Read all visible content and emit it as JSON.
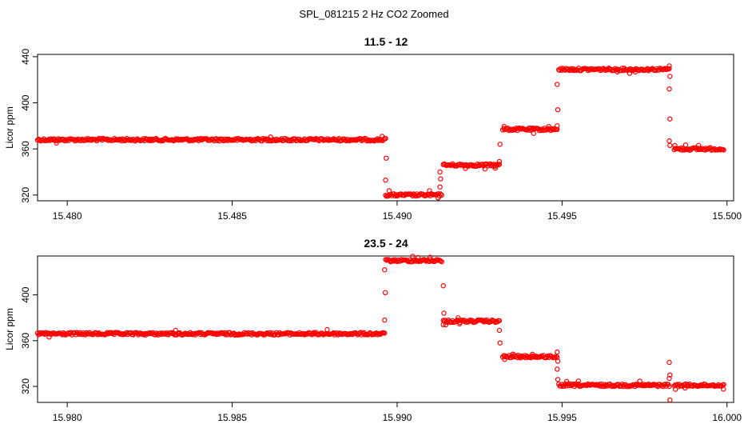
{
  "figure": {
    "title": "SPL_081215  2 Hz CO2 Zoomed"
  },
  "colors": {
    "points": "#ff0000",
    "axis": "#000000"
  },
  "chart_data": [
    {
      "type": "scatter",
      "title": "11.5 - 12",
      "xlabel": "",
      "ylabel": "Licor ppm",
      "xlim": [
        15.4791,
        15.5002
      ],
      "ylim": [
        315,
        442
      ],
      "x_ticks": [
        15.48,
        15.485,
        15.49,
        15.495,
        15.5
      ],
      "x_tick_labels": [
        "15.480",
        "15.485",
        "15.490",
        "15.495",
        "15.500"
      ],
      "y_ticks": [
        320,
        360,
        400,
        440
      ],
      "y_tick_labels": [
        "320",
        "360",
        "400",
        "440"
      ],
      "grid": false,
      "marker": "open-circle",
      "segments": [
        {
          "x": [
            15.4791,
            15.48962
          ],
          "y": 368
        },
        {
          "x": [
            15.48965,
            15.49135
          ],
          "y": 320
        },
        {
          "x": [
            15.4914,
            15.4931
          ],
          "y": 346
        },
        {
          "x": [
            15.4932,
            15.49485
          ],
          "y": 377
        },
        {
          "x": [
            15.4949,
            15.49825
          ],
          "y": 429
        },
        {
          "x": [
            15.4984,
            15.4999
          ],
          "y": 360
        }
      ],
      "transitions": [
        {
          "x": 15.48965,
          "y": [
            369,
            352,
            333
          ]
        },
        {
          "x": 15.4913,
          "y": [
            327,
            334,
            340
          ]
        },
        {
          "x": 15.4931,
          "y": [
            349,
            364
          ]
        },
        {
          "x": 15.49485,
          "y": [
            380,
            394,
            416
          ]
        },
        {
          "x": 15.49825,
          "y": [
            432,
            423,
            412,
            386,
            367,
            363
          ]
        }
      ]
    },
    {
      "type": "scatter",
      "title": "23.5 - 24",
      "xlabel": "",
      "ylabel": "Licor ppm",
      "xlim": [
        15.9791,
        16.0002
      ],
      "ylim": [
        306,
        434
      ],
      "x_ticks": [
        15.98,
        15.985,
        15.99,
        15.995,
        16.0
      ],
      "x_tick_labels": [
        "15.980",
        "15.985",
        "15.990",
        "15.995",
        "16.000"
      ],
      "y_ticks": [
        320,
        360,
        400
      ],
      "y_tick_labels": [
        "320",
        "360",
        "400"
      ],
      "grid": false,
      "marker": "open-circle",
      "segments": [
        {
          "x": [
            15.9791,
            15.98962
          ],
          "y": 366
        },
        {
          "x": [
            15.98965,
            15.99135
          ],
          "y": 430
        },
        {
          "x": [
            15.9914,
            15.9931
          ],
          "y": 377
        },
        {
          "x": [
            15.9932,
            15.99485
          ],
          "y": 346
        },
        {
          "x": [
            15.9949,
            15.99825
          ],
          "y": 321
        },
        {
          "x": [
            15.9984,
            15.9999
          ],
          "y": 321
        }
      ],
      "transitions": [
        {
          "x": 15.98962,
          "y": [
            378,
            402,
            422
          ]
        },
        {
          "x": 15.9914,
          "y": [
            408,
            384,
            374
          ]
        },
        {
          "x": 15.9931,
          "y": [
            369,
            358
          ]
        },
        {
          "x": 15.99485,
          "y": [
            350,
            342,
            335,
            326
          ]
        },
        {
          "x": 15.99825,
          "y": [
            341,
            330,
            327,
            308
          ]
        }
      ]
    }
  ]
}
